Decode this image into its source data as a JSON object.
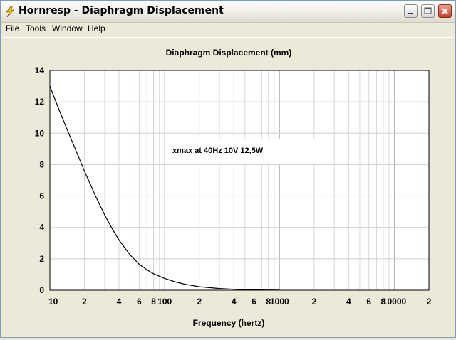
{
  "window": {
    "title": "Hornresp - Diaphragm Displacement"
  },
  "menu": {
    "items": [
      "File",
      "Tools",
      "Window",
      "Help"
    ]
  },
  "chart_data": {
    "type": "line",
    "title": "Diaphragm Displacement (mm)",
    "xlabel": "Frequency (hertz)",
    "ylabel": "",
    "x_scale": "log",
    "xlim": [
      10,
      20000
    ],
    "ylim": [
      0,
      14
    ],
    "y_ticks": [
      "0",
      "2",
      "4",
      "6",
      "8",
      "10",
      "12",
      "14"
    ],
    "x_tick_labels": [
      {
        "value": 10,
        "label": "10"
      },
      {
        "value": 20,
        "label": "2"
      },
      {
        "value": 40,
        "label": "4"
      },
      {
        "value": 60,
        "label": "6"
      },
      {
        "value": 80,
        "label": "8"
      },
      {
        "value": 100,
        "label": "100"
      },
      {
        "value": 200,
        "label": "2"
      },
      {
        "value": 400,
        "label": "4"
      },
      {
        "value": 600,
        "label": "6"
      },
      {
        "value": 800,
        "label": "8"
      },
      {
        "value": 1000,
        "label": "1000"
      },
      {
        "value": 2000,
        "label": "2"
      },
      {
        "value": 4000,
        "label": "4"
      },
      {
        "value": 6000,
        "label": "6"
      },
      {
        "value": 8000,
        "label": "8"
      },
      {
        "value": 10000,
        "label": "10000"
      },
      {
        "value": 20000,
        "label": "2"
      }
    ],
    "grid": true,
    "annotation": "xmax at 40Hz 10V 12,5W",
    "series": [
      {
        "x": [
          10,
          12,
          14,
          16,
          18,
          20,
          25,
          30,
          35,
          40,
          50,
          60,
          70,
          80,
          100,
          125,
          150,
          200,
          300,
          400,
          500,
          600,
          700,
          800,
          1000
        ],
        "y": [
          13.0,
          11.5,
          10.3,
          9.3,
          8.4,
          7.6,
          6.0,
          4.8,
          3.9,
          3.2,
          2.25,
          1.65,
          1.3,
          1.05,
          0.75,
          0.52,
          0.38,
          0.22,
          0.11,
          0.06,
          0.04,
          0.03,
          0.02,
          0.015,
          0.01
        ]
      }
    ]
  }
}
